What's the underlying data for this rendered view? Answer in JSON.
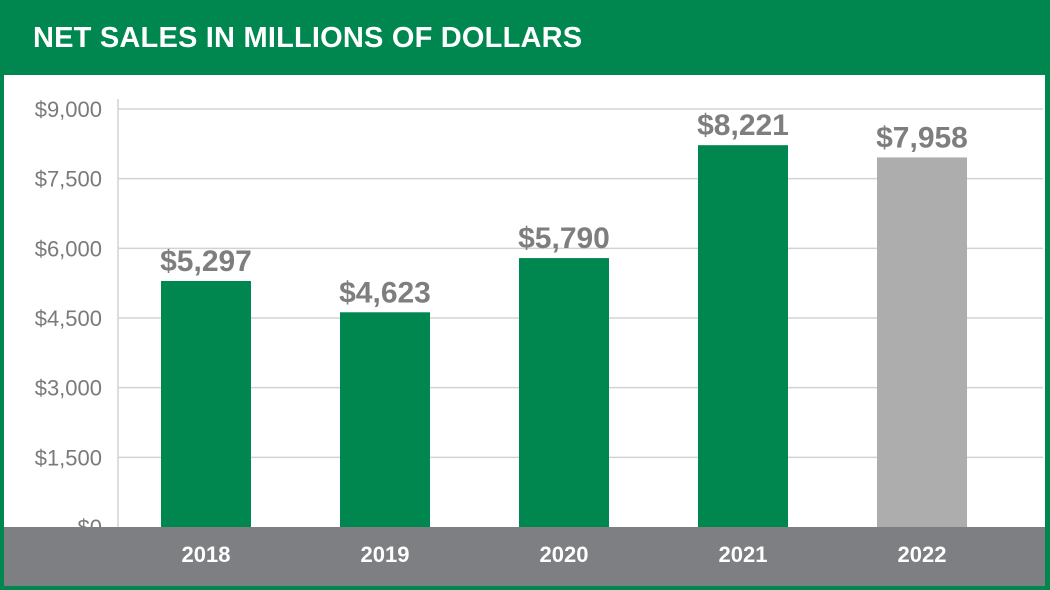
{
  "colors": {
    "frame": "#00874f",
    "bar_primary": "#00874f",
    "bar_highlight": "#adadad",
    "axis_band": "#7d7f82",
    "grid": "#d3d3d3",
    "label_gray": "#7e7e7e"
  },
  "chart_data": {
    "type": "bar",
    "title": "NET SALES IN MILLIONS OF DOLLARS",
    "categories": [
      "2018",
      "2019",
      "2020",
      "2021",
      "2022"
    ],
    "values": [
      5297,
      4623,
      5790,
      8221,
      7958
    ],
    "value_labels": [
      "$5,297",
      "$4,623",
      "$5,790",
      "$8,221",
      "$7,958"
    ],
    "bar_colors": [
      "#00874f",
      "#00874f",
      "#00874f",
      "#00874f",
      "#adadad"
    ],
    "ylim": [
      0,
      9000
    ],
    "yticks": [
      0,
      1500,
      3000,
      4500,
      6000,
      7500,
      9000
    ],
    "ytick_labels": [
      "$0",
      "$1,500",
      "$3,000",
      "$4,500",
      "$6,000",
      "$7,500",
      "$9,000"
    ],
    "xlabel": "",
    "ylabel": "",
    "grid": true,
    "legend": "none"
  }
}
